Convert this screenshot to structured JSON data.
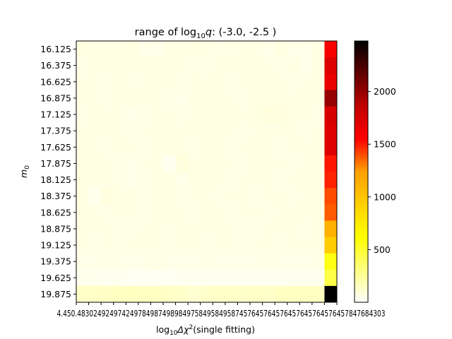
{
  "chart_data": {
    "type": "heatmap",
    "title_prefix": "range of log",
    "title_sub": "10",
    "title_var": "q",
    "title_suffix": ": (-3.0, -2.5 )",
    "xlabel_prefix": "log",
    "xlabel_sub": "10",
    "xlabel_delta": "Δχ",
    "xlabel_sup": "2",
    "xlabel_suffix": "(single fitting)",
    "ylabel_main": "m",
    "ylabel_sub": "0",
    "y_categories": [
      "16.125",
      "16.375",
      "16.625",
      "16.875",
      "17.125",
      "17.375",
      "17.625",
      "17.875",
      "18.125",
      "18.375",
      "18.625",
      "18.875",
      "19.125",
      "19.375",
      "19.625",
      "19.875"
    ],
    "x_tick_labels": [
      "4.45",
      "0.48",
      "0.27",
      "0.39",
      "0.48",
      "0.67",
      "0.87",
      "0.96",
      "0.66",
      "0.75",
      "0.86",
      "0.57",
      "0.67",
      "0.74",
      "0.76",
      "0.57",
      "0.78",
      "0.87",
      "0.66",
      "0.78",
      "4.78",
      "4.8303"
    ],
    "x_tick_text_overlapped": "4.450.4830249249742497849874989849758495849587457645764576457645764576457847684303",
    "colorbar": {
      "min": 0,
      "max": 2480,
      "ticks": [
        500,
        1000,
        1500,
        2000
      ],
      "colormap": "hot_r"
    },
    "values": [
      [
        80,
        75,
        70,
        72,
        78,
        60,
        58,
        70,
        72,
        80,
        70,
        65,
        68,
        72,
        70,
        60,
        75,
        62,
        58,
        70,
        1600
      ],
      [
        65,
        70,
        75,
        72,
        70,
        75,
        80,
        72,
        70,
        68,
        65,
        70,
        72,
        75,
        80,
        70,
        68,
        70,
        55,
        72,
        1700
      ],
      [
        70,
        72,
        68,
        75,
        65,
        70,
        72,
        75,
        68,
        70,
        72,
        70,
        68,
        75,
        72,
        70,
        72,
        68,
        70,
        72,
        1650
      ],
      [
        72,
        70,
        68,
        70,
        75,
        72,
        70,
        65,
        60,
        72,
        75,
        70,
        72,
        68,
        75,
        72,
        70,
        72,
        75,
        70,
        1950
      ],
      [
        68,
        70,
        72,
        70,
        62,
        65,
        72,
        70,
        68,
        70,
        72,
        70,
        75,
        72,
        78,
        90,
        85,
        70,
        72,
        68,
        1720
      ],
      [
        70,
        72,
        70,
        72,
        68,
        70,
        75,
        70,
        72,
        70,
        75,
        72,
        70,
        68,
        72,
        70,
        72,
        70,
        68,
        72,
        1700
      ],
      [
        72,
        70,
        68,
        70,
        72,
        65,
        72,
        75,
        70,
        68,
        72,
        70,
        68,
        70,
        70,
        72,
        65,
        70,
        72,
        70,
        1700
      ],
      [
        70,
        75,
        72,
        65,
        60,
        72,
        70,
        40,
        90,
        72,
        70,
        72,
        70,
        68,
        75,
        70,
        72,
        68,
        70,
        72,
        1500
      ],
      [
        75,
        72,
        70,
        68,
        62,
        65,
        70,
        72,
        60,
        70,
        72,
        70,
        68,
        72,
        70,
        70,
        68,
        70,
        72,
        70,
        1450
      ],
      [
        75,
        50,
        85,
        72,
        70,
        68,
        72,
        70,
        68,
        72,
        70,
        68,
        72,
        70,
        68,
        72,
        70,
        68,
        72,
        70,
        1300
      ],
      [
        72,
        70,
        68,
        72,
        70,
        68,
        72,
        75,
        70,
        68,
        72,
        70,
        68,
        72,
        70,
        68,
        72,
        70,
        70,
        72,
        1250
      ],
      [
        70,
        72,
        70,
        65,
        68,
        72,
        70,
        68,
        72,
        70,
        72,
        70,
        72,
        65,
        60,
        70,
        72,
        70,
        68,
        72,
        950
      ],
      [
        72,
        68,
        70,
        65,
        70,
        72,
        70,
        68,
        72,
        70,
        68,
        72,
        70,
        68,
        72,
        70,
        68,
        72,
        70,
        72,
        850
      ],
      [
        60,
        62,
        65,
        62,
        60,
        62,
        65,
        62,
        60,
        62,
        65,
        62,
        62,
        60,
        62,
        65,
        62,
        60,
        62,
        65,
        620
      ],
      [
        45,
        45,
        40,
        40,
        35,
        35,
        35,
        35,
        40,
        40,
        40,
        40,
        40,
        42,
        42,
        42,
        40,
        40,
        40,
        40,
        480
      ],
      [
        150,
        150,
        155,
        160,
        165,
        160,
        160,
        150,
        140,
        120,
        140,
        150,
        150,
        140,
        150,
        140,
        155,
        160,
        160,
        160,
        2480
      ]
    ]
  }
}
